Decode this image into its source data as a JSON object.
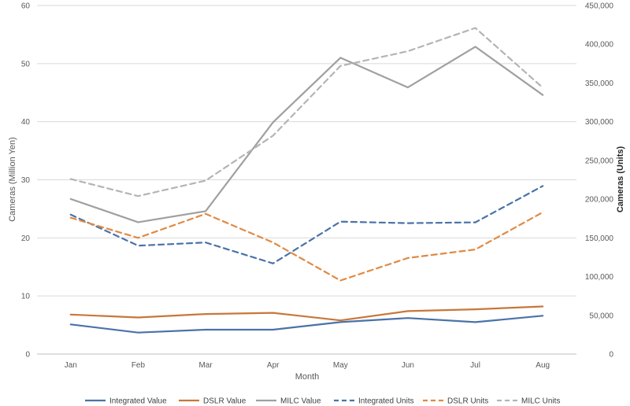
{
  "chart_data": {
    "type": "line",
    "title": "",
    "xlabel": "Month",
    "ylabel_left": "Cameras (Million Yen)",
    "ylabel_right": "Cameras (Units)",
    "categories": [
      "Jan",
      "Feb",
      "Mar",
      "Apr",
      "May",
      "Jun",
      "Jul",
      "Aug"
    ],
    "ylim_left": [
      0,
      60
    ],
    "yticks_left": [
      "0",
      "10",
      "20",
      "30",
      "40",
      "50",
      "60"
    ],
    "ylim_right": [
      0,
      450000
    ],
    "yticks_right": [
      "0",
      "50,000",
      "100,000",
      "150,000",
      "200,000",
      "250,000",
      "300,000",
      "350,000",
      "400,000",
      "450,000"
    ],
    "grid": true,
    "legend_position": "bottom",
    "series": [
      {
        "name": "Integrated Value",
        "axis": "left",
        "style": "solid",
        "color": "#4a72a8",
        "values": [
          5.1,
          3.7,
          4.2,
          4.2,
          5.5,
          6.2,
          5.5,
          6.6
        ]
      },
      {
        "name": "DSLR Value",
        "axis": "left",
        "style": "solid",
        "color": "#c8773a",
        "values": [
          6.8,
          6.3,
          6.9,
          7.1,
          5.8,
          7.4,
          7.7,
          8.2
        ]
      },
      {
        "name": "MILC Value",
        "axis": "left",
        "style": "solid",
        "color": "#a0a0a0",
        "values": [
          26.7,
          22.7,
          24.6,
          39.9,
          51.0,
          45.9,
          52.9,
          44.6
        ]
      },
      {
        "name": "Integrated Units",
        "axis": "right",
        "style": "dashed",
        "color": "#4a72a8",
        "values": [
          180000,
          140000,
          144000,
          117000,
          171000,
          169000,
          170000,
          217000
        ]
      },
      {
        "name": "DSLR Units",
        "axis": "right",
        "style": "dashed",
        "color": "#e08a44",
        "values": [
          176000,
          150000,
          181000,
          144000,
          95000,
          124000,
          135000,
          183000
        ]
      },
      {
        "name": "MILC Units",
        "axis": "right",
        "style": "dashed",
        "color": "#b4b4b4",
        "values": [
          226000,
          204000,
          224000,
          282000,
          372000,
          391000,
          421000,
          344000
        ]
      }
    ]
  }
}
